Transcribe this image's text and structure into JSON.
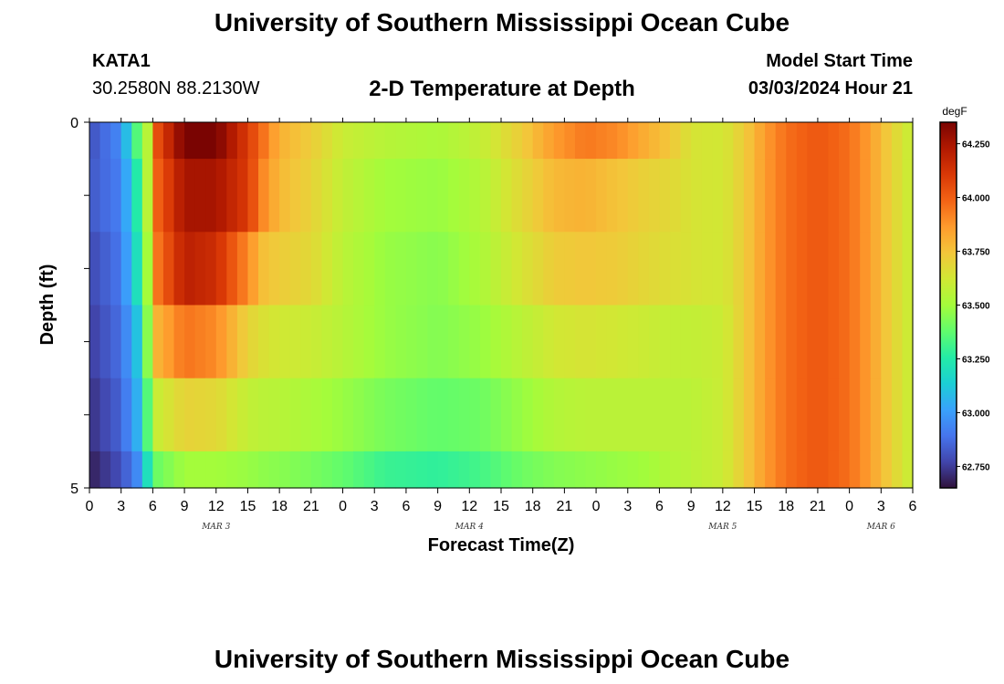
{
  "header": {
    "title": "University of Southern Mississippi Ocean Cube",
    "station": "KATA1",
    "coords": "30.2580N  88.2130W",
    "subtitle": "2-D Temperature at Depth",
    "model_start_label": "Model Start Time",
    "model_start_value": "03/03/2024 Hour 21"
  },
  "footer": {
    "title": "University of Southern Mississippi Ocean Cube"
  },
  "colors": {
    "colormap": [
      "#30123b",
      "#4145ab",
      "#4675ed",
      "#39a2fc",
      "#1bcfd4",
      "#24eca6",
      "#61fc6c",
      "#a4fc3b",
      "#d1e834",
      "#f3c63a",
      "#fe9b2d",
      "#f36315",
      "#d93806",
      "#b11901",
      "#7a0402"
    ]
  },
  "chart_data": {
    "type": "heatmap",
    "title": "2-D Temperature at Depth",
    "xlabel": "Forecast Time(Z)",
    "ylabel": "Depth (ft)",
    "x_tick_labels": [
      "0",
      "3",
      "6",
      "9",
      "12",
      "15",
      "18",
      "21",
      "0",
      "3",
      "6",
      "9",
      "12",
      "15",
      "18",
      "21",
      "0",
      "3",
      "6",
      "9",
      "12",
      "15",
      "18",
      "21",
      "0",
      "3",
      "6"
    ],
    "date_labels": [
      {
        "label": "MAR 3",
        "hour": 12
      },
      {
        "label": "MAR 4",
        "hour": 36
      },
      {
        "label": "MAR 5",
        "hour": 60
      },
      {
        "label": "MAR 6",
        "hour": 75
      }
    ],
    "xlim": [
      0,
      78
    ],
    "ylim": [
      0,
      5
    ],
    "y_tick_labels": [
      "0",
      "5"
    ],
    "y_ticks": [
      0,
      1,
      2,
      3,
      4,
      5
    ],
    "depth_rows": [
      "0-0.5",
      "0.5-1.5",
      "1.5-2.5",
      "2.5-3.5",
      "3.5-4.5",
      "4.5-5"
    ],
    "row_bounds": [
      0,
      0.5,
      1.5,
      2.5,
      3.5,
      4.5,
      5
    ],
    "profile_hours": [
      0,
      3,
      4.5,
      5.5,
      6.5,
      9,
      12,
      15,
      16.5,
      18,
      21,
      24,
      28,
      33,
      37,
      41,
      44,
      47,
      50,
      53,
      55,
      57,
      60,
      62,
      64,
      66,
      69,
      72,
      74,
      76,
      78
    ],
    "temperature_degF": [
      [
        62.8,
        62.95,
        63.35,
        63.55,
        64.05,
        64.35,
        64.35,
        64.1,
        63.95,
        63.8,
        63.72,
        63.6,
        63.55,
        63.52,
        63.58,
        63.72,
        63.86,
        63.94,
        63.9,
        63.8,
        63.74,
        63.64,
        63.62,
        63.72,
        63.86,
        63.96,
        64.02,
        63.96,
        63.85,
        63.7,
        63.58
      ],
      [
        62.82,
        62.92,
        63.25,
        63.55,
        64.0,
        64.25,
        64.25,
        64.1,
        63.9,
        63.78,
        63.7,
        63.58,
        63.5,
        63.48,
        63.54,
        63.68,
        63.78,
        63.8,
        63.75,
        63.7,
        63.68,
        63.64,
        63.62,
        63.72,
        63.86,
        63.96,
        64.02,
        63.96,
        63.85,
        63.7,
        63.58
      ],
      [
        62.78,
        62.9,
        63.2,
        63.5,
        63.95,
        64.2,
        64.15,
        63.9,
        63.76,
        63.72,
        63.68,
        63.56,
        63.48,
        63.45,
        63.52,
        63.64,
        63.72,
        63.74,
        63.72,
        63.68,
        63.66,
        63.64,
        63.62,
        63.72,
        63.86,
        63.96,
        64.02,
        63.96,
        63.85,
        63.7,
        63.58
      ],
      [
        62.75,
        62.88,
        63.1,
        63.45,
        63.8,
        63.95,
        63.9,
        63.7,
        63.65,
        63.62,
        63.6,
        63.55,
        63.48,
        63.44,
        63.48,
        63.56,
        63.62,
        63.64,
        63.62,
        63.6,
        63.58,
        63.58,
        63.6,
        63.72,
        63.86,
        63.96,
        64.02,
        63.96,
        63.85,
        63.7,
        63.58
      ],
      [
        62.72,
        62.85,
        63.05,
        63.35,
        63.6,
        63.7,
        63.68,
        63.58,
        63.56,
        63.55,
        63.52,
        63.48,
        63.42,
        63.38,
        63.4,
        63.48,
        63.54,
        63.56,
        63.56,
        63.56,
        63.56,
        63.56,
        63.6,
        63.72,
        63.86,
        63.96,
        64.02,
        63.96,
        63.85,
        63.7,
        63.58
      ],
      [
        62.68,
        62.8,
        62.95,
        63.2,
        63.4,
        63.5,
        63.5,
        63.48,
        63.46,
        63.45,
        63.42,
        63.38,
        63.3,
        63.28,
        63.32,
        63.4,
        63.44,
        63.46,
        63.48,
        63.5,
        63.54,
        63.56,
        63.6,
        63.72,
        63.86,
        63.96,
        64.02,
        63.96,
        63.85,
        63.7,
        63.58
      ]
    ],
    "colorbar": {
      "label": "degF",
      "range": [
        62.65,
        64.35
      ],
      "ticks": [
        62.75,
        63.0,
        63.25,
        63.5,
        63.75,
        64.0,
        64.25
      ],
      "tick_labels": [
        "62.750",
        "63.000",
        "63.250",
        "63.500",
        "63.750",
        "64.000",
        "64.250"
      ]
    }
  }
}
